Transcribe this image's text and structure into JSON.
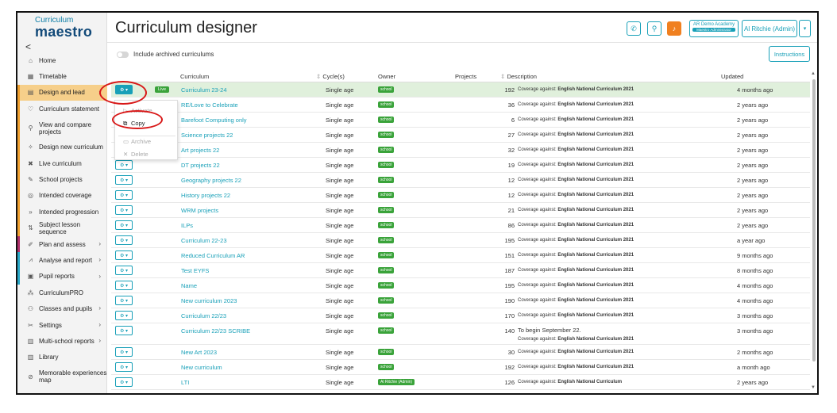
{
  "app": {
    "logo_top": "Curriculum",
    "logo_bottom": "maestro",
    "collapse_glyph": "<"
  },
  "sidebar": {
    "items": [
      {
        "label": "Home",
        "icon": "home-icon",
        "glyph": "⌂",
        "bar": "none",
        "chevron": false
      },
      {
        "label": "Timetable",
        "icon": "calendar-icon",
        "glyph": "▦",
        "bar": "none",
        "chevron": false
      },
      {
        "label": "Design and lead",
        "icon": "design-icon",
        "glyph": "▤",
        "bar": "orange",
        "chevron": true,
        "active": true
      },
      {
        "label": "Curriculum statement",
        "icon": "heart-icon",
        "glyph": "♡",
        "bar": "orange",
        "chevron": false
      },
      {
        "label": "View and compare projects",
        "icon": "search-icon",
        "glyph": "⚲",
        "bar": "orange",
        "chevron": false,
        "tall": true
      },
      {
        "label": "Design new curriculum",
        "icon": "design-new-icon",
        "glyph": "✧",
        "bar": "orange",
        "chevron": false
      },
      {
        "label": "Live curriculum",
        "icon": "live-icon",
        "glyph": "✖",
        "bar": "orange",
        "chevron": false
      },
      {
        "label": "School projects",
        "icon": "edit-icon",
        "glyph": "✎",
        "bar": "orange",
        "chevron": false
      },
      {
        "label": "Intended coverage",
        "icon": "target-icon",
        "glyph": "◎",
        "bar": "orange",
        "chevron": false
      },
      {
        "label": "Intended progression",
        "icon": "progression-icon",
        "glyph": "»",
        "bar": "orange",
        "chevron": false
      },
      {
        "label": "Subject lesson sequence",
        "icon": "sequence-icon",
        "glyph": "⇅",
        "bar": "orange",
        "chevron": false
      },
      {
        "label": "Plan and assess",
        "icon": "pencil-icon",
        "glyph": "✐",
        "bar": "pink",
        "chevron": true
      },
      {
        "label": "Analyse and report",
        "icon": "chart-icon",
        "glyph": "⩘",
        "bar": "teal",
        "chevron": true
      },
      {
        "label": "Pupil reports",
        "icon": "report-icon",
        "glyph": "▣",
        "bar": "teal",
        "chevron": true
      },
      {
        "label": "CurriculumPRO",
        "icon": "pro-icon",
        "glyph": "⁂",
        "bar": "none",
        "chevron": false
      },
      {
        "label": "Classes and pupils",
        "icon": "classes-icon",
        "glyph": "⚇",
        "bar": "none",
        "chevron": true
      },
      {
        "label": "Settings",
        "icon": "settings-icon",
        "glyph": "✂",
        "bar": "none",
        "chevron": true
      },
      {
        "label": "Multi-school reports",
        "icon": "multi-school-icon",
        "glyph": "▥",
        "bar": "none",
        "chevron": true
      },
      {
        "label": "Library",
        "icon": "library-icon",
        "glyph": "▥",
        "bar": "none",
        "chevron": false
      },
      {
        "label": "Memorable experiences map",
        "icon": "compass-icon",
        "glyph": "⊘",
        "bar": "none",
        "chevron": false,
        "tall": true
      }
    ]
  },
  "header": {
    "title": "Curriculum designer",
    "phone_glyph": "✆",
    "search_glyph": "⚲",
    "bell_glyph": "🔔",
    "academy_name": "AR Demo Academy",
    "academy_role": "Maestro Administrator",
    "user": "Al Ritchie (Admin)",
    "caret": "▾"
  },
  "toolbar": {
    "archived_label": "Include archived curriculums",
    "instructions_label": "Instructions"
  },
  "table": {
    "headers": {
      "curriculum": "Curriculum",
      "cycles": "Cycle(s)",
      "owner": "Owner",
      "projects": "Projects",
      "description": "Description",
      "updated": "Updated"
    },
    "sort_glyph": "⇕",
    "gear_glyph": "⚙ ▾",
    "live_label": "Live",
    "coverage_prefix": "Coverage against: ",
    "rows": [
      {
        "name": "Curriculum 23-24",
        "cycle": "Single age",
        "owner": "school",
        "projects": "192",
        "desc_main": "",
        "coverage": "English National Curriculum 2021",
        "updated": "4 months ago",
        "live": true,
        "highlight": true
      },
      {
        "name": "RE/Love to Celebrate",
        "cycle": "Single age",
        "owner": "school",
        "projects": "36",
        "desc_main": "",
        "coverage": "English National Curriculum 2021",
        "updated": "2 years ago"
      },
      {
        "name": "Barefoot Computing only",
        "cycle": "Single age",
        "owner": "school",
        "projects": "6",
        "desc_main": "",
        "coverage": "English National Curriculum 2021",
        "updated": "2 years ago"
      },
      {
        "name": "Science projects 22",
        "cycle": "Single age",
        "owner": "school",
        "projects": "27",
        "desc_main": "",
        "coverage": "English National Curriculum 2021",
        "updated": "2 years ago"
      },
      {
        "name": "Art projects 22",
        "cycle": "Single age",
        "owner": "school",
        "projects": "32",
        "desc_main": "",
        "coverage": "English National Curriculum 2021",
        "updated": "2 years ago"
      },
      {
        "name": "DT projects 22",
        "cycle": "Single age",
        "owner": "school",
        "projects": "19",
        "desc_main": "",
        "coverage": "English National Curriculum 2021",
        "updated": "2 years ago"
      },
      {
        "name": "Geography projects 22",
        "cycle": "Single age",
        "owner": "school",
        "projects": "12",
        "desc_main": "",
        "coverage": "English National Curriculum 2021",
        "updated": "2 years ago"
      },
      {
        "name": "History projects 22",
        "cycle": "Single age",
        "owner": "school",
        "projects": "12",
        "desc_main": "",
        "coverage": "English National Curriculum 2021",
        "updated": "2 years ago"
      },
      {
        "name": "WRM projects",
        "cycle": "Single age",
        "owner": "school",
        "projects": "21",
        "desc_main": "",
        "coverage": "English National Curriculum 2021",
        "updated": "2 years ago"
      },
      {
        "name": "ILPs",
        "cycle": "Single age",
        "owner": "school",
        "projects": "86",
        "desc_main": "",
        "coverage": "English National Curriculum 2021",
        "updated": "2 years ago"
      },
      {
        "name": "Curriculum 22-23",
        "cycle": "Single age",
        "owner": "school",
        "projects": "195",
        "desc_main": "",
        "coverage": "English National Curriculum 2021",
        "updated": "a year ago"
      },
      {
        "name": "Reduced Curriculum AR",
        "cycle": "Single age",
        "owner": "school",
        "projects": "151",
        "desc_main": "",
        "coverage": "English National Curriculum 2021",
        "updated": "9 months ago"
      },
      {
        "name": "Test EYFS",
        "cycle": "Single age",
        "owner": "school",
        "projects": "187",
        "desc_main": "",
        "coverage": "English National Curriculum 2021",
        "updated": "8 months ago"
      },
      {
        "name": "Name",
        "cycle": "Single age",
        "owner": "school",
        "projects": "195",
        "desc_main": "",
        "coverage": "English National Curriculum 2021",
        "updated": "4 months ago"
      },
      {
        "name": "New curriculum 2023",
        "cycle": "Single age",
        "owner": "school",
        "projects": "190",
        "desc_main": "",
        "coverage": "English National Curriculum 2021",
        "updated": "4 months ago"
      },
      {
        "name": "Curriculum 22/23",
        "cycle": "Single age",
        "owner": "school",
        "projects": "170",
        "desc_main": "",
        "coverage": "English National Curriculum 2021",
        "updated": "3 months ago"
      },
      {
        "name": "Curriculum 22/23 SCRIBE",
        "cycle": "Single age",
        "owner": "school",
        "projects": "140",
        "desc_main": "To begin September 22.",
        "coverage": "English National Curriculum 2021",
        "updated": "3 months ago",
        "tall": true
      },
      {
        "name": "New Art 2023",
        "cycle": "Single age",
        "owner": "school",
        "projects": "30",
        "desc_main": "",
        "coverage": "English National Curriculum 2021",
        "updated": "2 months ago"
      },
      {
        "name": "New curriculum",
        "cycle": "Single age",
        "owner": "school",
        "projects": "192",
        "desc_main": "",
        "coverage": "English National Curriculum 2021",
        "updated": "a month ago"
      },
      {
        "name": "LTI",
        "cycle": "Single age",
        "owner": "Al Ritchie (Admin)",
        "projects": "126",
        "desc_main": "",
        "coverage": "English National Curriculum",
        "updated": "2 years ago"
      }
    ]
  },
  "dropdown": {
    "items": [
      {
        "label": "Activate",
        "glyph": "▷",
        "enabled": false
      },
      {
        "label": "Copy",
        "glyph": "⧉",
        "enabled": true
      },
      {
        "label": "Archive",
        "glyph": "▭",
        "enabled": false
      },
      {
        "label": "Delete",
        "glyph": "✕",
        "enabled": false
      }
    ]
  },
  "colors": {
    "accent": "#18a0b8",
    "live_green": "#3aa33a",
    "highlight_row": "#e0f0dc",
    "annotation_red": "#d81818",
    "active_nav": "#f6cf8a"
  }
}
